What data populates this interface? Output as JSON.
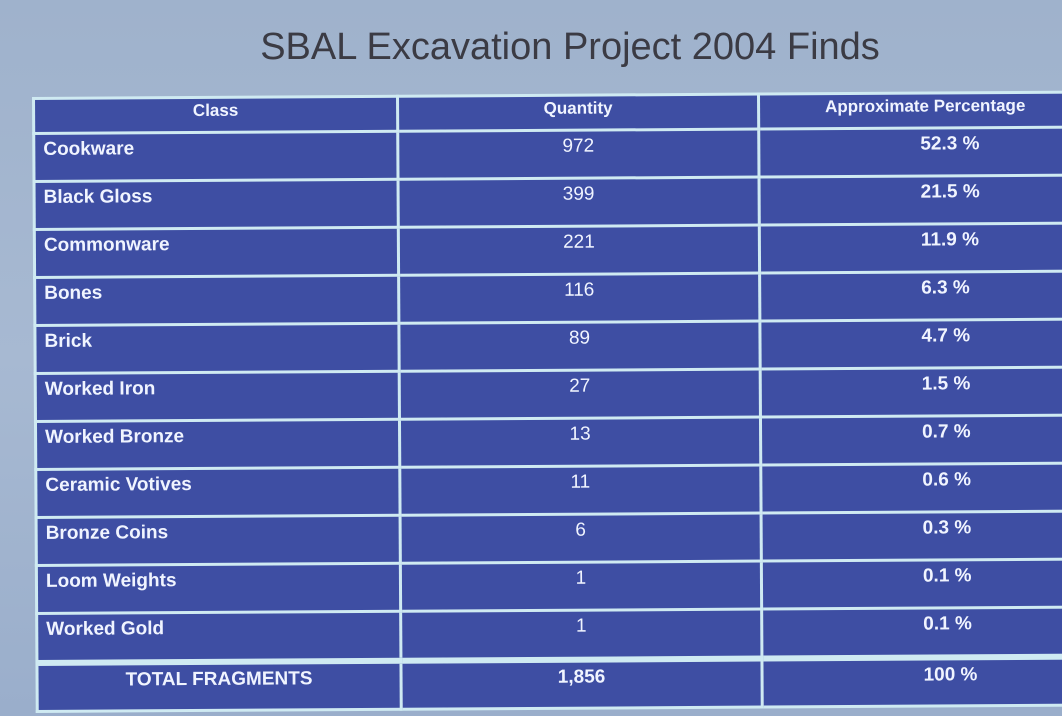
{
  "title": "SBAL Excavation Project 2004 Finds",
  "table": {
    "headers": [
      "Class",
      "Quantity",
      "Approximate Percentage"
    ],
    "rows": [
      [
        "Cookware",
        "972",
        "52.3 %"
      ],
      [
        "Black Gloss",
        "399",
        "21.5 %"
      ],
      [
        "Commonware",
        "221",
        "11.9 %"
      ],
      [
        "Bones",
        "116",
        "6.3 %"
      ],
      [
        "Brick",
        "89",
        "4.7 %"
      ],
      [
        "Worked Iron",
        "27",
        "1.5 %"
      ],
      [
        "Worked Bronze",
        "13",
        "0.7 %"
      ],
      [
        "Ceramic Votives",
        "11",
        "0.6 %"
      ],
      [
        "Bronze Coins",
        "6",
        "0.3 %"
      ],
      [
        "Loom Weights",
        "1",
        "0.1 %"
      ],
      [
        "Worked Gold",
        "1",
        "0.1 %"
      ]
    ],
    "total": [
      "TOTAL FRAGMENTS",
      "1,856",
      "100 %"
    ]
  },
  "colors": {
    "background": "#a3b5cf",
    "cell": "#3e4ea3",
    "border": "#cfeaf2",
    "title": "#3b3b44"
  }
}
